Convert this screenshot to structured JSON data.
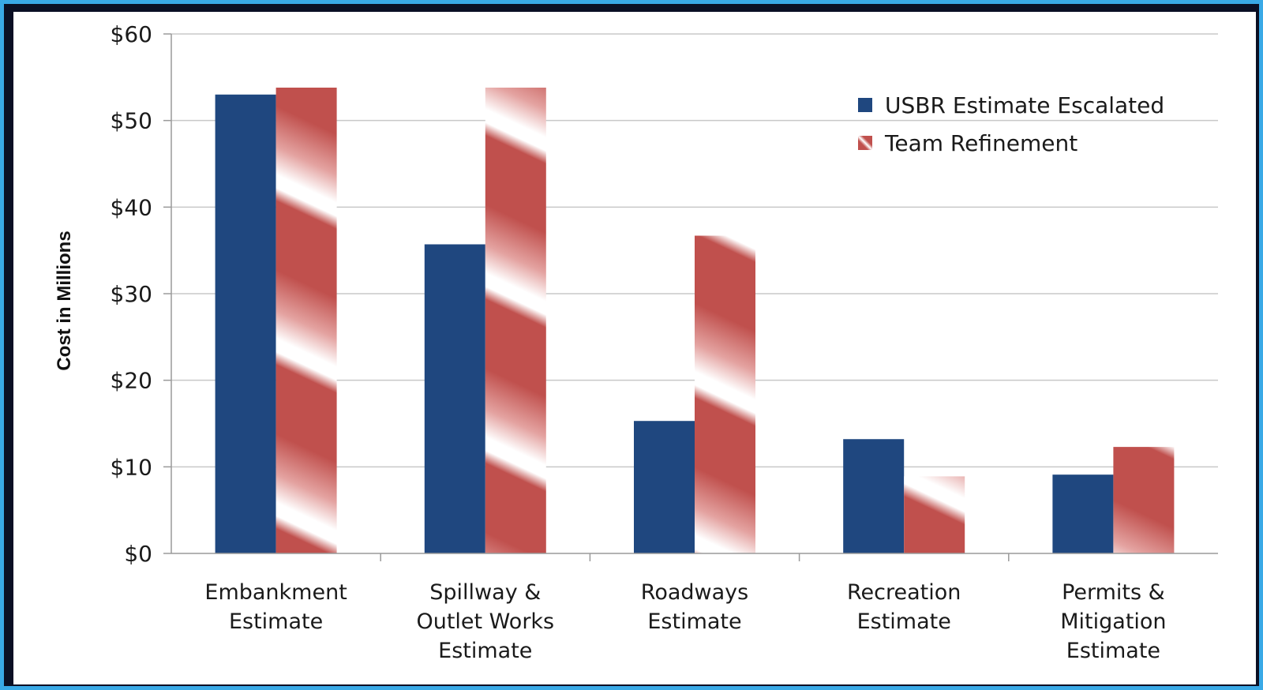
{
  "chart_data": {
    "type": "bar",
    "title": "",
    "xlabel": "",
    "ylabel": "Cost in Millions",
    "ylim": [
      0,
      60
    ],
    "yticks": [
      "$0",
      "$10",
      "$20",
      "$30",
      "$40",
      "$50",
      "$60"
    ],
    "grid": true,
    "legend_position": "top-right",
    "categories": [
      [
        "Embankment",
        "Estimate"
      ],
      [
        "Spillway &",
        "Outlet Works",
        "Estimate"
      ],
      [
        "Roadways",
        "Estimate"
      ],
      [
        "Recreation",
        "Estimate"
      ],
      [
        "Permits &",
        "Mitigation",
        "Estimate"
      ]
    ],
    "series": [
      {
        "name": "USBR Estimate Escalated",
        "color": "#1f477f",
        "style": "solid",
        "values": [
          53,
          35.7,
          15.3,
          13.2,
          9.1
        ]
      },
      {
        "name": "Team Refinement",
        "color": "#c0504d",
        "style": "striped",
        "values": [
          53.8,
          53.8,
          36.7,
          8.9,
          12.3
        ]
      }
    ]
  }
}
